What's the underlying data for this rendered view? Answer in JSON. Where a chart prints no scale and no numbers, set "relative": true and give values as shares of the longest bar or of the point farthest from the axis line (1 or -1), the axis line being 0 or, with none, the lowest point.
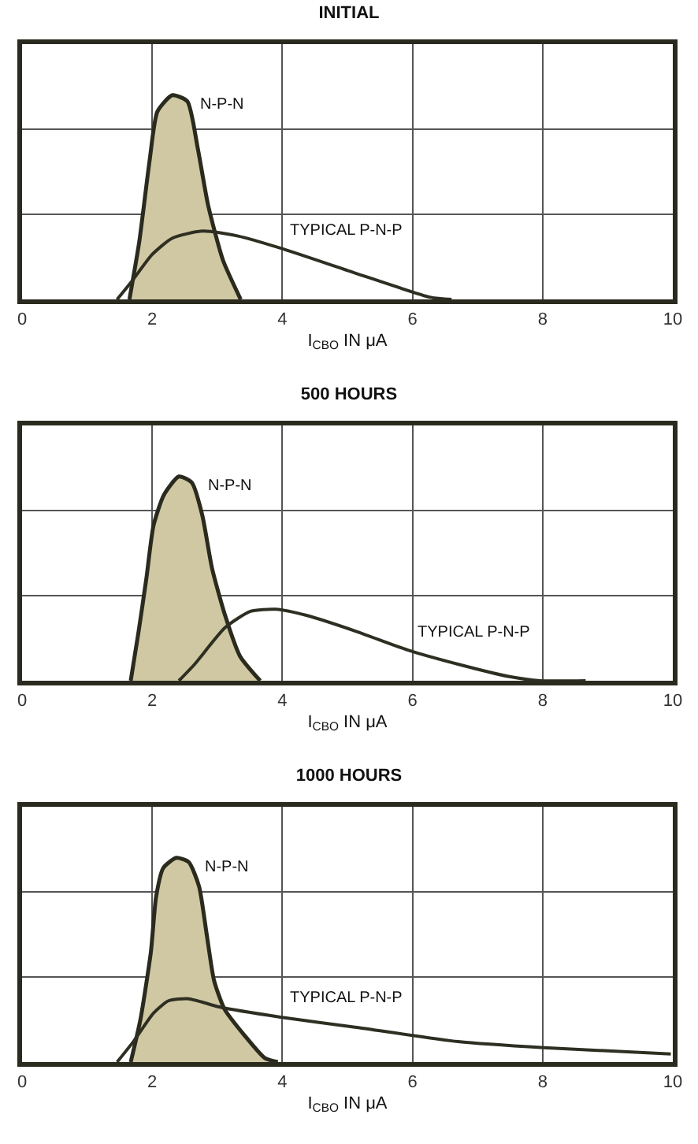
{
  "chart_data": [
    {
      "type": "area",
      "title": "INITIAL",
      "xlabel": "I$_{CBO}$ IN μA",
      "relative": true,
      "xlim": [
        0,
        10
      ],
      "xticks": [
        0,
        2,
        4,
        6,
        8,
        10
      ],
      "grid": true,
      "legend": false,
      "series": [
        {
          "name": "N-P-N",
          "color": "#cfc8a3",
          "x": [
            1.65,
            1.8,
            1.96,
            2.08,
            2.31,
            2.54,
            2.7,
            2.86,
            3.09,
            3.36
          ],
          "values": [
            0,
            0.28,
            0.68,
            0.92,
            1,
            0.97,
            0.74,
            0.46,
            0.19,
            0
          ]
        },
        {
          "name": "TYPICAL P-N-P",
          "type": "line",
          "color": "#2e2e22",
          "x": [
            1.46,
            1.69,
            2.0,
            2.31,
            2.78,
            3.32,
            3.98,
            5.11,
            6.28,
            6.6
          ],
          "values": [
            0,
            0.09,
            0.22,
            0.3,
            0.335,
            0.31,
            0.25,
            0.13,
            0.01,
            0
          ]
        }
      ]
    },
    {
      "type": "area",
      "title": "500 HOURS",
      "xlabel": "I$_{CBO}$ IN μA",
      "relative": true,
      "xlim": [
        0,
        10
      ],
      "xticks": [
        0,
        2,
        4,
        6,
        8,
        10
      ],
      "grid": true,
      "legend": false,
      "series": [
        {
          "name": "N-P-N",
          "color": "#cfc8a3",
          "x": [
            1.67,
            1.79,
            1.91,
            2.02,
            2.18,
            2.41,
            2.61,
            2.77,
            2.92,
            3.12,
            3.35,
            3.66
          ],
          "values": [
            0,
            0.24,
            0.5,
            0.76,
            0.91,
            1,
            0.97,
            0.81,
            0.55,
            0.32,
            0.12,
            0
          ]
        },
        {
          "name": "TYPICAL P-N-P",
          "type": "line",
          "color": "#2e2e22",
          "x": [
            2.41,
            2.65,
            3.12,
            3.51,
            3.9,
            4.37,
            5.15,
            5.93,
            6.71,
            7.49,
            7.96,
            8.66
          ],
          "values": [
            0,
            0.08,
            0.26,
            0.34,
            0.35,
            0.32,
            0.24,
            0.15,
            0.08,
            0.02,
            0,
            0
          ]
        }
      ]
    },
    {
      "type": "area",
      "title": "1000 HOURS",
      "xlabel": "I$_{CBO}$ IN μA",
      "relative": true,
      "xlim": [
        0,
        10
      ],
      "xticks": [
        0,
        2,
        4,
        6,
        8,
        10
      ],
      "grid": true,
      "legend": false,
      "series": [
        {
          "name": "N-P-N",
          "color": "#cfc8a3",
          "x": [
            1.67,
            1.82,
            1.98,
            2.06,
            2.17,
            2.37,
            2.56,
            2.72,
            2.84,
            2.95,
            3.11,
            3.42,
            3.73,
            3.93
          ],
          "values": [
            0,
            0.21,
            0.54,
            0.81,
            0.95,
            1,
            0.98,
            0.86,
            0.62,
            0.4,
            0.26,
            0.13,
            0.02,
            0
          ]
        },
        {
          "name": "TYPICAL P-N-P",
          "type": "line",
          "color": "#2e2e22",
          "x": [
            1.46,
            1.71,
            2.02,
            2.25,
            2.56,
            3.03,
            3.97,
            5.14,
            6.7,
            8.02,
            9.97
          ],
          "values": [
            0,
            0.1,
            0.24,
            0.3,
            0.31,
            0.27,
            0.22,
            0.17,
            0.1,
            0.07,
            0.04
          ]
        }
      ]
    }
  ]
}
